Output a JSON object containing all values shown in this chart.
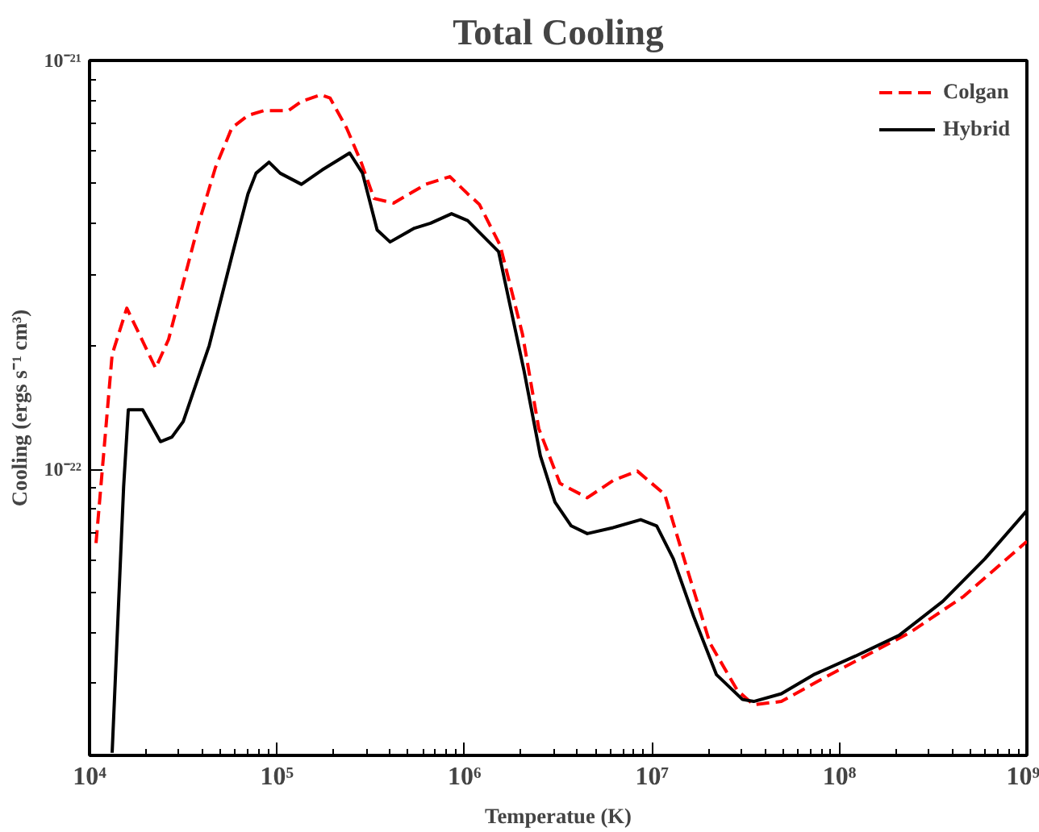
{
  "chart_data": {
    "type": "line",
    "title": "Total Cooling",
    "xlabel": "Temperatue (K)",
    "ylabel": "Cooling (ergs s⁻¹ cm³)",
    "log": "xy",
    "grid": false,
    "legend": "top right",
    "marker": "none",
    "xlim": [
      10000,
      1000000000
    ],
    "ylim": [
      2e-23,
      1e-21
    ],
    "xticks": [
      {
        "value": 10000,
        "label": "10⁴"
      },
      {
        "value": 100000,
        "label": "10⁵"
      },
      {
        "value": 1000000,
        "label": "10⁶"
      },
      {
        "value": 10000000,
        "label": "10⁷"
      },
      {
        "value": 100000000,
        "label": "10⁸"
      },
      {
        "value": 1000000000,
        "label": "10⁹"
      }
    ],
    "yticks": [
      {
        "value": 1e-22,
        "label": "10⁻²²"
      },
      {
        "value": 1e-21,
        "label": "10⁻²¹"
      }
    ],
    "series": [
      {
        "name": "Colgan",
        "color": "#ff0000",
        "line_style": "dashed",
        "x": [
          10830,
          13200,
          15800,
          22500,
          26400,
          31600,
          38600,
          47000,
          57400,
          70000,
          85300,
          115000,
          135000,
          171000,
          192000,
          235000,
          281000,
          329000,
          418000,
          621000,
          836000,
          1040000,
          1200000,
          1550000,
          2040000,
          2490000,
          3230000,
          4520000,
          6210000,
          8360000,
          11700000,
          15200000,
          20400000,
          28600000,
          34900000,
          49000000,
          88800000,
          239000000,
          461000000,
          1000000000
        ],
        "values": [
          6.61e-23,
          1.91e-22,
          2.48e-22,
          1.77e-22,
          2.08e-22,
          2.86e-22,
          4.06e-22,
          5.48e-22,
          6.84e-22,
          7.34e-22,
          7.54e-22,
          7.54e-22,
          7.94e-22,
          8.24e-22,
          8.09e-22,
          6.84e-22,
          5.64e-22,
          4.6e-22,
          4.48e-22,
          4.98e-22,
          5.2e-22,
          4.72e-22,
          4.45e-22,
          3.53e-22,
          2.14e-22,
          1.26e-22,
          9.25e-23,
          8.53e-23,
          9.4e-23,
          9.91e-23,
          8.69e-23,
          5.83e-23,
          3.76e-23,
          2.88e-23,
          2.66e-23,
          2.71e-23,
          3.15e-23,
          4e-23,
          4.9e-23,
          6.67e-23
        ]
      },
      {
        "name": "Hybrid",
        "color": "#000000",
        "line_style": "solid",
        "x": [
          13200,
          15200,
          16100,
          19200,
          23900,
          27500,
          31600,
          43500,
          57400,
          70000,
          77300,
          90600,
          104000,
          135000,
          174000,
          244000,
          286000,
          342000,
          401000,
          540000,
          659000,
          853000,
          1040000,
          1520000,
          2080000,
          2540000,
          3040000,
          3710000,
          4520000,
          6210000,
          8710000,
          10600000,
          13000000,
          16700000,
          22100000,
          30400000,
          34900000,
          49000000,
          72800000,
          122000000,
          208000000,
          356000000,
          597000000,
          1000000000
        ],
        "values": [
          2.03e-23,
          9.08e-23,
          1.4e-22,
          1.4e-22,
          1.17e-22,
          1.2e-22,
          1.31e-22,
          2.01e-22,
          3.32e-22,
          4.72e-22,
          5.3e-22,
          5.64e-22,
          5.3e-22,
          4.98e-22,
          5.4e-22,
          5.94e-22,
          5.3e-22,
          3.85e-22,
          3.6e-22,
          3.89e-22,
          4e-22,
          4.22e-22,
          4.06e-22,
          3.41e-22,
          1.74e-22,
          1.08e-22,
          8.32e-23,
          7.28e-23,
          6.97e-23,
          7.21e-23,
          7.54e-23,
          7.28e-23,
          6.05e-23,
          4.37e-23,
          3.15e-23,
          2.74e-23,
          2.71e-23,
          2.83e-23,
          3.15e-23,
          3.5e-23,
          3.93e-23,
          4.76e-23,
          6.05e-23,
          7.94e-23
        ]
      }
    ]
  }
}
